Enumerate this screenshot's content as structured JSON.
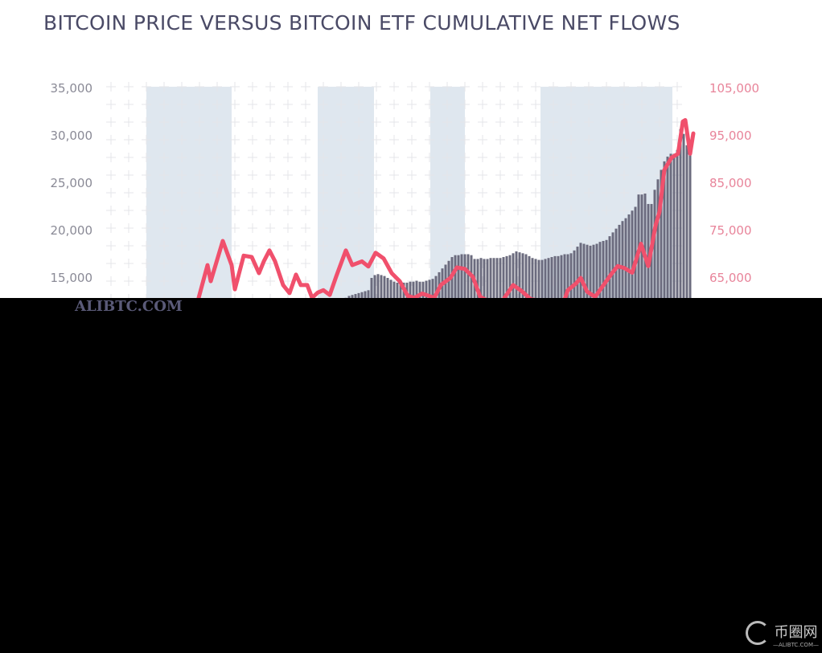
{
  "chart_data": {
    "type": "bar+line",
    "title": "BITCOIN PRICE VERSUS BITCOIN ETF CUMULATIVE NET FLOWS",
    "x_unit": "sequence index (no x labels visible)",
    "xlim": [
      0,
      183
    ],
    "left_axis": {
      "ticks": [
        "15,000",
        "20,000",
        "25,000",
        "30,000",
        "35,000"
      ],
      "tick_values": [
        15000,
        20000,
        25000,
        30000,
        35000
      ],
      "ylim": [
        0,
        35000
      ],
      "color": "#8a8a96"
    },
    "right_axis": {
      "ticks": [
        "65,000",
        "75,000",
        "85,000",
        "95,000",
        "105,000"
      ],
      "tick_values": [
        65000,
        75000,
        85000,
        95000,
        105000
      ],
      "ylim": [
        35000,
        105000
      ],
      "color": "#e8849a"
    },
    "grid": true,
    "shaded_ranges": [
      [
        13,
        39.5
      ],
      [
        66.25,
        83.75
      ],
      [
        101.25,
        112
      ],
      [
        135.5,
        176.5
      ]
    ],
    "bars": {
      "axis": "left",
      "color": "#6b6b7e",
      "x_start": 75,
      "values": [
        12900,
        13100,
        13200,
        13300,
        13400,
        13500,
        13600,
        13700,
        15000,
        15300,
        15400,
        15300,
        15200,
        15000,
        14800,
        14600,
        14500,
        14400,
        14500,
        14500,
        14600,
        14600,
        14700,
        14600,
        14600,
        14700,
        14800,
        14900,
        15200,
        15600,
        16000,
        16400,
        16800,
        17200,
        17400,
        17400,
        17500,
        17500,
        17500,
        17400,
        17000,
        17000,
        17100,
        17000,
        17000,
        17100,
        17100,
        17100,
        17100,
        17200,
        17300,
        17400,
        17600,
        17800,
        17700,
        17600,
        17500,
        17300,
        17100,
        17000,
        16900,
        16900,
        17000,
        17100,
        17200,
        17300,
        17300,
        17400,
        17500,
        17500,
        17600,
        17900,
        18300,
        18700,
        18600,
        18500,
        18400,
        18500,
        18600,
        18800,
        18900,
        19000,
        19400,
        19800,
        20200,
        20600,
        21000,
        21300,
        21700,
        22100,
        22500,
        23800,
        23800,
        23900,
        22800,
        22800,
        24300,
        25400,
        26400,
        27300,
        27800,
        28100,
        28100,
        28500,
        30700,
        30200,
        29000,
        28400
      ]
    },
    "line": {
      "axis": "right",
      "color": "#f0506c",
      "points": [
        [
          29.25,
          60800
        ],
        [
          32,
          67700
        ],
        [
          33,
          64300
        ],
        [
          36.75,
          72800
        ],
        [
          39.5,
          67700
        ],
        [
          40.5,
          62600
        ],
        [
          43.25,
          69700
        ],
        [
          45.75,
          69400
        ],
        [
          48,
          66000
        ],
        [
          49.5,
          68500
        ],
        [
          51.25,
          70800
        ],
        [
          53,
          68500
        ],
        [
          55.5,
          63500
        ],
        [
          57.5,
          61800
        ],
        [
          59.5,
          65700
        ],
        [
          61,
          63500
        ],
        [
          63,
          63500
        ],
        [
          64.5,
          60800
        ],
        [
          66.25,
          61900
        ],
        [
          68,
          62400
        ],
        [
          70,
          61400
        ],
        [
          72,
          65300
        ],
        [
          75,
          70800
        ],
        [
          77,
          67700
        ],
        [
          80,
          68500
        ],
        [
          82,
          67400
        ],
        [
          84.25,
          70300
        ],
        [
          86.75,
          69100
        ],
        [
          89.25,
          66000
        ],
        [
          91.75,
          64300
        ],
        [
          94.25,
          61200
        ],
        [
          96.25,
          60800
        ],
        [
          98.75,
          61700
        ],
        [
          102.5,
          60800
        ],
        [
          104.5,
          63500
        ],
        [
          107.5,
          65000
        ],
        [
          109.5,
          67200
        ],
        [
          112,
          66900
        ],
        [
          114.5,
          65200
        ],
        [
          116.75,
          61000
        ],
        [
          122.5,
          59000
        ],
        [
          127,
          63500
        ],
        [
          129.5,
          62300
        ],
        [
          132.5,
          60500
        ],
        [
          142.5,
          59500
        ],
        [
          144,
          62400
        ],
        [
          146.5,
          63800
        ],
        [
          148,
          65000
        ],
        [
          150,
          62100
        ],
        [
          152.5,
          61000
        ],
        [
          157.5,
          65800
        ],
        [
          159.5,
          67500
        ],
        [
          161.5,
          67100
        ],
        [
          164,
          66100
        ],
        [
          166.75,
          72200
        ],
        [
          169,
          67500
        ],
        [
          171.25,
          76000
        ],
        [
          172.5,
          79000
        ],
        [
          174,
          87800
        ],
        [
          176.25,
          90400
        ],
        [
          178.25,
          91200
        ],
        [
          179.75,
          98000
        ],
        [
          180.5,
          98300
        ],
        [
          181.5,
          93700
        ],
        [
          182,
          91200
        ],
        [
          183,
          95500
        ]
      ]
    },
    "shade_color": "#dfe7ef"
  },
  "watermark": "ALIBTC.COM",
  "logo": {
    "name": "币圈网",
    "sub": "—ALIBTC.COM—"
  }
}
